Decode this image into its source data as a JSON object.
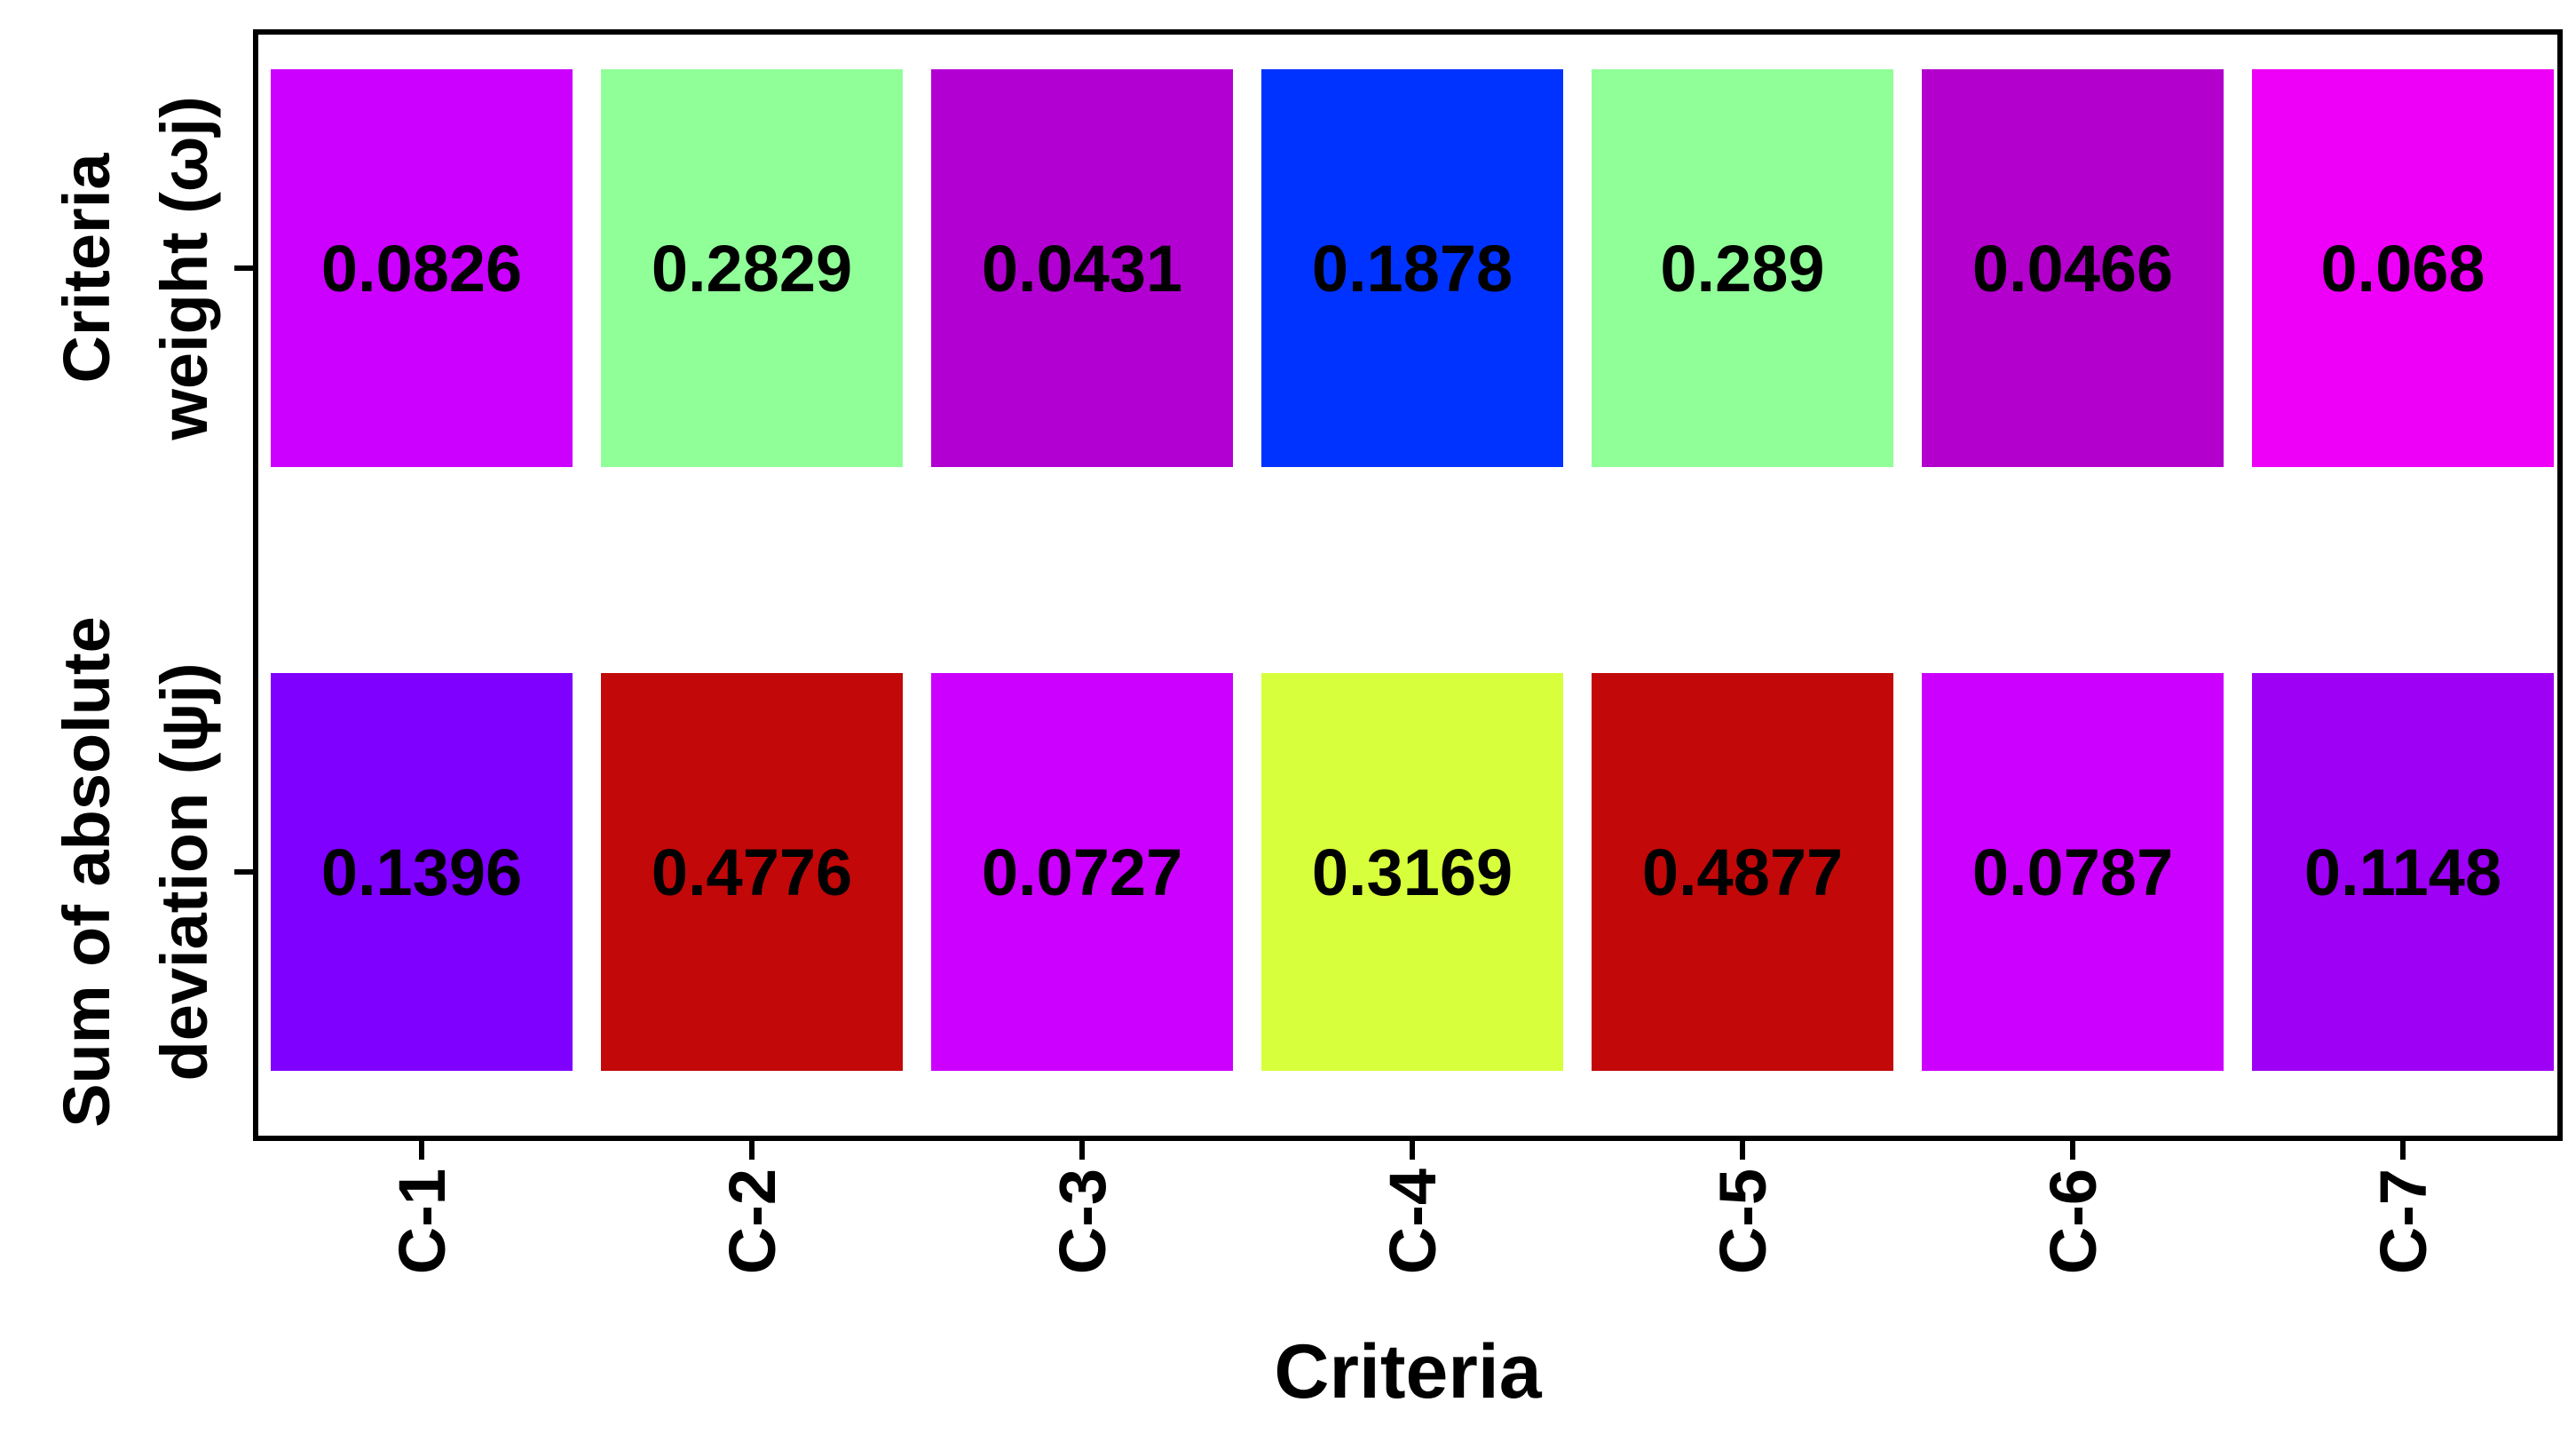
{
  "chart_data": {
    "type": "heatmap",
    "title": "",
    "xlabel": "Criteria",
    "ylabel": "",
    "categories": [
      "C-1",
      "C-2",
      "C-3",
      "C-4",
      "C-5",
      "C-6",
      "C-7"
    ],
    "rows": [
      {
        "label_lines": [
          "Criteria",
          "weight (ωj)"
        ],
        "values": [
          0.0826,
          0.2829,
          0.0431,
          0.1878,
          0.289,
          0.0466,
          0.068
        ],
        "labels": [
          "0.0826",
          "0.2829",
          "0.0431",
          "0.1878",
          "0.289",
          "0.0466",
          "0.068"
        ],
        "colors": [
          "#CC00FF",
          "#90FF98",
          "#B300D2",
          "#0033FF",
          "#90FF98",
          "#B300CC",
          "#EE00F8"
        ]
      },
      {
        "label_lines": [
          "Sum of absolute",
          "deviation (ψj)"
        ],
        "values": [
          0.1396,
          0.4776,
          0.0727,
          0.3169,
          0.4877,
          0.0787,
          0.1148
        ],
        "labels": [
          "0.1396",
          "0.4776",
          "0.0727",
          "0.3169",
          "0.4877",
          "0.0787",
          "0.1148"
        ],
        "colors": [
          "#7F00FF",
          "#C20808",
          "#CC00FF",
          "#D8FF3C",
          "#C20808",
          "#CC00FF",
          "#9E00F5"
        ]
      }
    ],
    "grid": false,
    "legend": "none"
  }
}
